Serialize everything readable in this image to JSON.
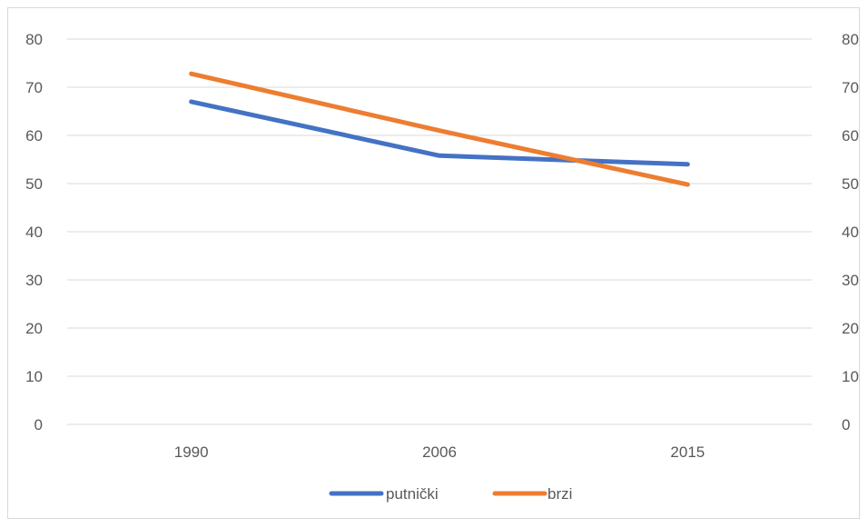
{
  "chart_data": {
    "type": "line",
    "categories": [
      "1990",
      "2006",
      "2015"
    ],
    "series": [
      {
        "name": "putnički",
        "values": [
          67,
          55.8,
          54
        ],
        "color": "#4472c4"
      },
      {
        "name": "brzi",
        "values": [
          72.8,
          61,
          49.8
        ],
        "color": "#ed7d31"
      }
    ],
    "ylim": [
      0,
      80
    ],
    "yticks": [
      "0",
      "10",
      "20",
      "30",
      "40",
      "50",
      "60",
      "70",
      "80"
    ],
    "secondary_yticks": [
      "0",
      "10",
      "20",
      "30",
      "40",
      "50",
      "60",
      "70",
      "80"
    ],
    "grid": true,
    "legend": "bottom",
    "title": "",
    "xlabel": "",
    "ylabel": ""
  }
}
